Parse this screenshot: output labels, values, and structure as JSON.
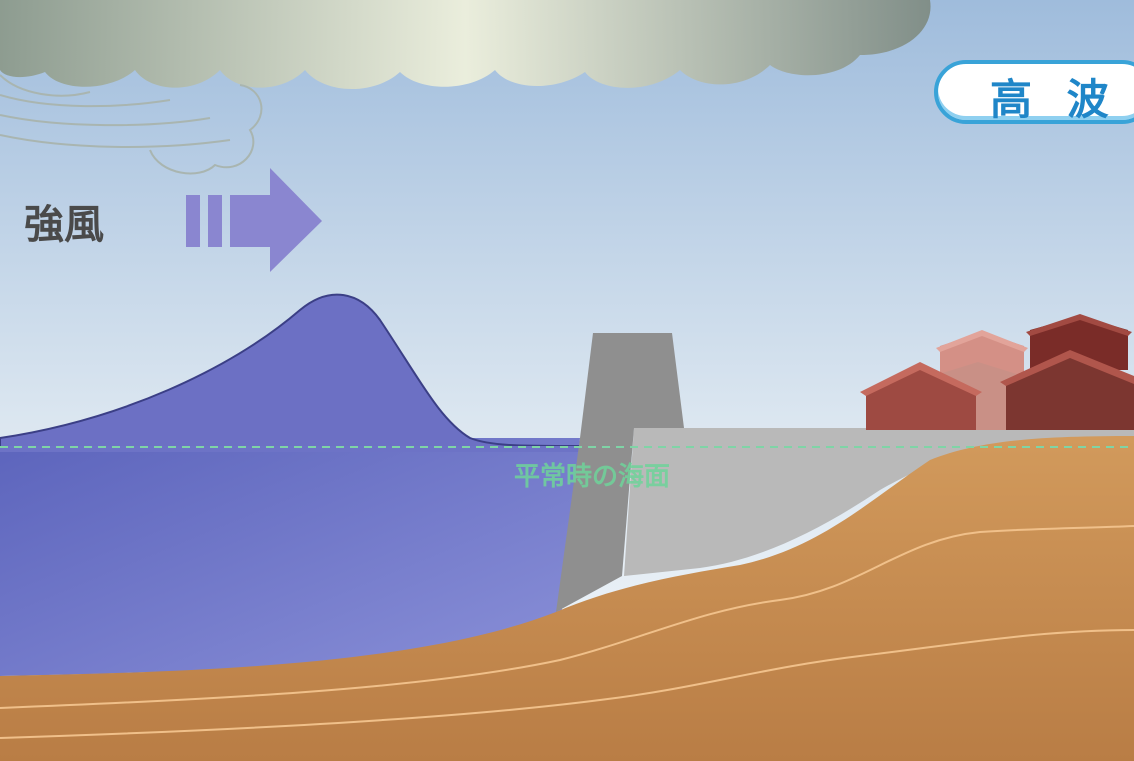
{
  "title": "高 波",
  "wind_label": "強風",
  "sea_level_label": "平常時の海面",
  "colors": {
    "sky_top": "#9fbcdc",
    "sky_bottom": "#f4f8fb",
    "sea": "#6870c8",
    "wave": "#6c70c4",
    "arrow": "#8a86d0",
    "seawall": "#8f8f8f",
    "embankment": "#b9b9b9",
    "ground": "#c98e52",
    "strata_line": "#f0c08a",
    "sea_level_line": "#7fd4a6",
    "title_border": "#39a3d8",
    "title_text": "#1f86c8"
  },
  "icons": [
    "storm-cloud-icon",
    "wind-arrow-icon",
    "house-icon"
  ]
}
